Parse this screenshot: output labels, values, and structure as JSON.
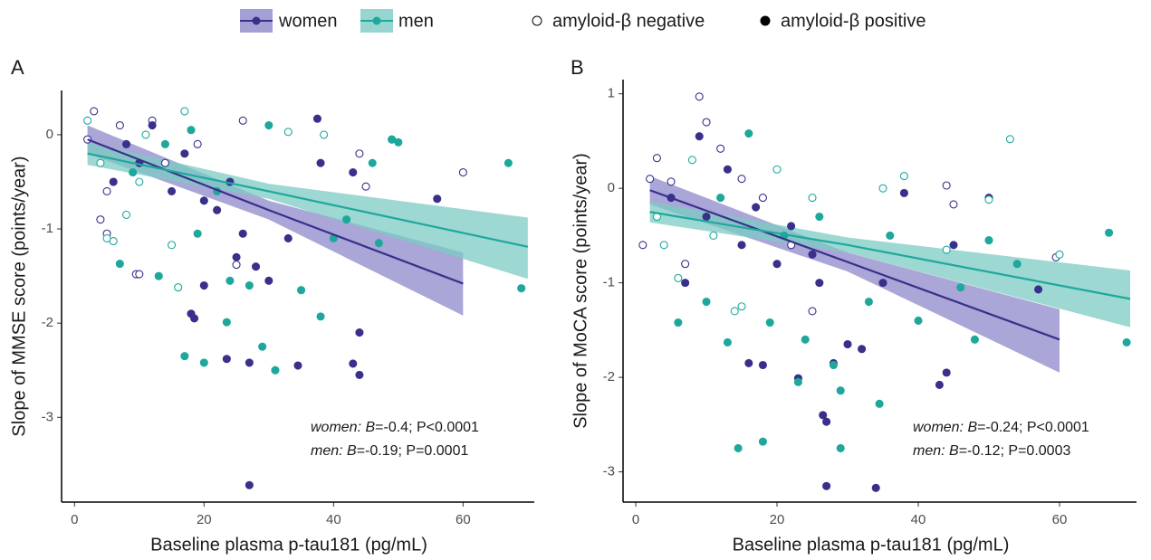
{
  "legend": {
    "series": [
      {
        "name": "women",
        "color": "#38308a",
        "band": "#8e88c9"
      },
      {
        "name": "men",
        "color": "#1ea89c",
        "band": "#7ccbc4"
      }
    ],
    "markers": [
      {
        "name": "amyloid-β negative",
        "filled": false
      },
      {
        "name": "amyloid-β positive",
        "filled": true
      }
    ]
  },
  "chart_data": [
    {
      "type": "scatter",
      "panel": "A",
      "xlabel": "Baseline plasma p-tau181 (pg/mL)",
      "ylabel": "Slope of MMSE score (points/year)",
      "xlim": [
        -2,
        71
      ],
      "ylim": [
        -3.9,
        0.47
      ],
      "xticks": [
        0,
        20,
        40,
        60
      ],
      "yticks": [
        -3,
        -2,
        -1,
        0
      ],
      "annotation": [
        {
          "name": "women:",
          "stat": "B",
          "text": "=-0.4; P<0.0001"
        },
        {
          "name": "men:",
          "stat": "B",
          "text": "=-0.19; P=0.0001"
        }
      ],
      "series": [
        {
          "positive": {
            "x": [
              27,
              44,
              43,
              34.5,
              27,
              23.5,
              44,
              18,
              18.5,
              20,
              38,
              43,
              56,
              37.5,
              30,
              25,
              22,
              15,
              10,
              12,
              8,
              26,
              20,
              28,
              33,
              6,
              17,
              24
            ],
            "values": [
              -3.72,
              -2.55,
              -2.43,
              -2.45,
              -2.42,
              -2.38,
              -2.1,
              -1.9,
              -1.95,
              -1.6,
              -0.3,
              -0.4,
              -0.68,
              0.17,
              -1.55,
              -1.3,
              -0.8,
              -0.6,
              -0.3,
              0.1,
              -0.1,
              -1.05,
              -0.7,
              -1.4,
              -1.1,
              -0.5,
              -0.2,
              -0.5
            ]
          },
          "negative": {
            "x": [
              3,
              2,
              5,
              9.5,
              10,
              14,
              25,
              44,
              60,
              45,
              7,
              12,
              19,
              26,
              4,
              5
            ],
            "values": [
              0.25,
              -0.05,
              -0.6,
              -1.48,
              -1.48,
              -0.3,
              -1.38,
              -0.2,
              -0.4,
              -0.55,
              0.1,
              0.15,
              -0.1,
              0.15,
              -0.9,
              -1.05
            ]
          },
          "fit": {
            "x": [
              2,
              30,
              60
            ],
            "values": [
              -0.05,
              -0.8,
              -1.58
            ],
            "lower": [
              -0.2,
              -0.9,
              -1.92
            ],
            "upper": [
              0.1,
              -0.7,
              -1.25
            ]
          }
        },
        {
          "positive": {
            "x": [
              69,
              67,
              50,
              46,
              40,
              38,
              35,
              31,
              29,
              27,
              20,
              17,
              23.5,
              24,
              7,
              9,
              14,
              18,
              22,
              30,
              42,
              47,
              49,
              13,
              19
            ],
            "values": [
              -1.63,
              -0.3,
              -0.08,
              -0.3,
              -1.1,
              -1.93,
              -1.65,
              -2.5,
              -2.25,
              -1.6,
              -2.42,
              -2.35,
              -1.99,
              -1.55,
              -1.37,
              -0.4,
              -0.1,
              0.05,
              -0.6,
              0.1,
              -0.9,
              -1.15,
              -0.05,
              -1.5,
              -1.05
            ]
          },
          "negative": {
            "x": [
              6,
              5,
              8,
              15,
              16,
              4,
              11,
              17,
              33,
              38.5,
              49,
              2,
              10
            ],
            "values": [
              -1.13,
              -1.1,
              -0.85,
              -1.17,
              -1.62,
              -0.3,
              0.0,
              0.25,
              0.03,
              0.0,
              -0.05,
              0.15,
              -0.5
            ]
          },
          "fit": {
            "x": [
              2,
              30,
              70
            ],
            "values": [
              -0.2,
              -0.6,
              -1.19
            ],
            "lower": [
              -0.32,
              -0.68,
              -1.53
            ],
            "upper": [
              -0.08,
              -0.52,
              -0.88
            ]
          }
        }
      ]
    },
    {
      "type": "scatter",
      "panel": "B",
      "xlabel": "Baseline plasma p-tau181 (pg/mL)",
      "ylabel": "Slope of MoCA score (points/year)",
      "xlim": [
        -1.8,
        70.9
      ],
      "ylim": [
        -3.32,
        1.15
      ],
      "xticks": [
        0,
        20,
        40,
        60
      ],
      "yticks": [
        -3,
        -2,
        -1,
        0,
        1
      ],
      "annotation": [
        {
          "name": "women:",
          "stat": "B",
          "text": "=-0.24; P<0.0001"
        },
        {
          "name": "men:",
          "stat": "B",
          "text": "=-0.12; P=0.0003"
        }
      ],
      "series": [
        {
          "positive": {
            "x": [
              27,
              34,
              43,
              44,
              26.5,
              27,
              23,
              18,
              16,
              57,
              50,
              45,
              38,
              28,
              30,
              32,
              26,
              20,
              15,
              10,
              9,
              13,
              7,
              22,
              35,
              5,
              17,
              25
            ],
            "values": [
              -3.15,
              -3.17,
              -2.08,
              -1.95,
              -2.4,
              -2.47,
              -2.01,
              -1.87,
              -1.85,
              -1.07,
              -0.1,
              -0.6,
              -0.05,
              -1.85,
              -1.65,
              -1.7,
              -1.0,
              -0.8,
              -0.6,
              -0.3,
              0.55,
              0.2,
              -1.0,
              -0.4,
              -1.0,
              -0.1,
              -0.2,
              -0.7
            ]
          },
          "negative": {
            "x": [
              9,
              10,
              12,
              5,
              3,
              1,
              22,
              25,
              44,
              45,
              59.5,
              7,
              15,
              18,
              2
            ],
            "values": [
              0.97,
              0.7,
              0.42,
              0.07,
              0.32,
              -0.6,
              -0.6,
              -1.3,
              0.03,
              -0.17,
              -0.73,
              -0.8,
              0.1,
              -0.1,
              0.1
            ]
          },
          "fit": {
            "x": [
              2,
              30,
              60
            ],
            "values": [
              -0.02,
              -0.78,
              -1.6
            ],
            "lower": [
              -0.17,
              -0.88,
              -1.95
            ],
            "upper": [
              0.13,
              -0.68,
              -1.28
            ]
          }
        },
        {
          "positive": {
            "x": [
              69.5,
              67,
              54,
              50,
              46,
              40,
              36,
              33,
              29,
              28,
              24,
              23,
              18,
              14.5,
              29,
              34.5,
              13,
              6,
              19,
              21,
              26,
              16,
              12,
              48,
              10
            ],
            "values": [
              -1.63,
              -0.47,
              -0.8,
              -0.55,
              -1.05,
              -1.4,
              -0.5,
              -1.2,
              -2.14,
              -1.87,
              -1.6,
              -2.05,
              -2.68,
              -2.75,
              -2.75,
              -2.28,
              -1.63,
              -1.42,
              -1.42,
              -0.5,
              -0.3,
              0.58,
              -0.1,
              -1.6,
              -1.2
            ]
          },
          "negative": {
            "x": [
              53,
              44,
              38,
              50,
              60,
              35,
              6,
              4,
              14,
              15,
              8,
              20,
              25,
              3,
              11
            ],
            "values": [
              0.52,
              -0.65,
              0.13,
              -0.12,
              -0.7,
              0.0,
              -0.95,
              -0.6,
              -1.3,
              -1.25,
              0.3,
              0.2,
              -0.1,
              -0.3,
              -0.5
            ]
          },
          "fit": {
            "x": [
              2,
              30,
              70
            ],
            "values": [
              -0.25,
              -0.6,
              -1.17
            ],
            "lower": [
              -0.36,
              -0.68,
              -1.47
            ],
            "upper": [
              -0.14,
              -0.52,
              -0.87
            ]
          }
        }
      ]
    }
  ]
}
